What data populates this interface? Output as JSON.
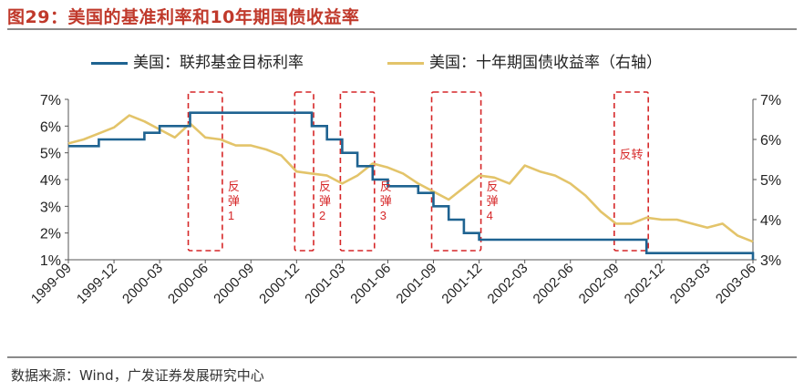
{
  "title": "图29：美国的基准利率和10年期国债收益率",
  "source": "数据来源：Wind，广发证券发展研究中心",
  "chart_data": {
    "type": "line",
    "title": "图29：美国的基准利率和10年期国债收益率",
    "x_ticks": [
      "1999-09",
      "1999-12",
      "2000-03",
      "2000-06",
      "2000-09",
      "2000-12",
      "2001-03",
      "2001-06",
      "2001-09",
      "2001-12",
      "2002-03",
      "2002-06",
      "2002-09",
      "2002-12",
      "2003-03",
      "2003-06"
    ],
    "x_range": [
      "1999-09",
      "2003-06"
    ],
    "left_axis": {
      "min": 1,
      "max": 7,
      "ticks": [
        "1%",
        "2%",
        "3%",
        "4%",
        "5%",
        "6%",
        "7%"
      ]
    },
    "right_axis": {
      "min": 3,
      "max": 7,
      "ticks": [
        "3%",
        "4%",
        "5%",
        "6%",
        "7%"
      ]
    },
    "series": [
      {
        "name": "美国：联邦基金目标利率",
        "axis": "left",
        "color": "#1f6391",
        "step": true,
        "points": [
          [
            "1999-09",
            5.25
          ],
          [
            "1999-11",
            5.5
          ],
          [
            "2000-02",
            5.75
          ],
          [
            "2000-03",
            6.0
          ],
          [
            "2000-05",
            6.5
          ],
          [
            "2001-01",
            6.0
          ],
          [
            "2001-02",
            5.5
          ],
          [
            "2001-03",
            5.0
          ],
          [
            "2001-04",
            4.5
          ],
          [
            "2001-05",
            4.0
          ],
          [
            "2001-06",
            3.75
          ],
          [
            "2001-08",
            3.5
          ],
          [
            "2001-09",
            3.0
          ],
          [
            "2001-10",
            2.5
          ],
          [
            "2001-11",
            2.0
          ],
          [
            "2001-12",
            1.75
          ],
          [
            "2002-11",
            1.25
          ],
          [
            "2003-06",
            1.0
          ]
        ]
      },
      {
        "name": "美国：十年期国债收益率（右轴）",
        "axis": "right",
        "color": "#e3c46a",
        "step": false,
        "points": [
          [
            "1999-09",
            5.9
          ],
          [
            "1999-10",
            6.0
          ],
          [
            "1999-11",
            6.15
          ],
          [
            "1999-12",
            6.3
          ],
          [
            "2000-01",
            6.6
          ],
          [
            "2000-02",
            6.45
          ],
          [
            "2000-03",
            6.25
          ],
          [
            "2000-04",
            6.05
          ],
          [
            "2000-05",
            6.4
          ],
          [
            "2000-06",
            6.05
          ],
          [
            "2000-07",
            6.0
          ],
          [
            "2000-08",
            5.85
          ],
          [
            "2000-09",
            5.85
          ],
          [
            "2000-10",
            5.75
          ],
          [
            "2000-11",
            5.6
          ],
          [
            "2000-12",
            5.2
          ],
          [
            "2001-01",
            5.15
          ],
          [
            "2001-02",
            5.1
          ],
          [
            "2001-03",
            4.9
          ],
          [
            "2001-04",
            5.1
          ],
          [
            "2001-05",
            5.4
          ],
          [
            "2001-06",
            5.3
          ],
          [
            "2001-07",
            5.15
          ],
          [
            "2001-08",
            4.9
          ],
          [
            "2001-09",
            4.7
          ],
          [
            "2001-10",
            4.5
          ],
          [
            "2001-11",
            4.8
          ],
          [
            "2001-12",
            5.1
          ],
          [
            "2002-01",
            5.05
          ],
          [
            "2002-02",
            4.9
          ],
          [
            "2002-03",
            5.35
          ],
          [
            "2002-04",
            5.2
          ],
          [
            "2002-05",
            5.1
          ],
          [
            "2002-06",
            4.9
          ],
          [
            "2002-07",
            4.6
          ],
          [
            "2002-08",
            4.2
          ],
          [
            "2002-09",
            3.9
          ],
          [
            "2002-10",
            3.9
          ],
          [
            "2002-11",
            4.05
          ],
          [
            "2002-12",
            4.0
          ],
          [
            "2003-01",
            4.0
          ],
          [
            "2003-02",
            3.9
          ],
          [
            "2003-03",
            3.8
          ],
          [
            "2003-04",
            3.9
          ],
          [
            "2003-05",
            3.6
          ],
          [
            "2003-06",
            3.45
          ]
        ]
      }
    ],
    "annotations": [
      {
        "label": "反弹1",
        "from": "2000-05",
        "to": "2000-07"
      },
      {
        "label": "反弹2",
        "from": "2000-12",
        "to": "2001-01"
      },
      {
        "label": "反弹3",
        "from": "2001-03",
        "to": "2001-05"
      },
      {
        "label": "反弹4",
        "from": "2001-09",
        "to": "2001-12"
      },
      {
        "label": "反转",
        "from": "2002-09",
        "to": "2002-11"
      }
    ]
  }
}
